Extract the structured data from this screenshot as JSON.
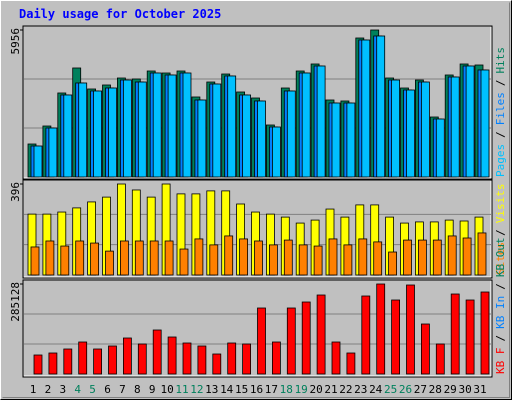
{
  "title": "Daily usage for October 2025",
  "categories": [
    "1",
    "2",
    "3",
    "4",
    "5",
    "6",
    "7",
    "8",
    "9",
    "10",
    "11",
    "12",
    "13",
    "14",
    "15",
    "16",
    "17",
    "18",
    "19",
    "20",
    "21",
    "22",
    "23",
    "24",
    "25",
    "26",
    "27",
    "28",
    "29",
    "30",
    "31"
  ],
  "category_colors": [
    "#000000",
    "#000000",
    "#000000",
    "#00805c",
    "#00805c",
    "#000000",
    "#000000",
    "#000000",
    "#000000",
    "#000000",
    "#00805c",
    "#00805c",
    "#000000",
    "#000000",
    "#000000",
    "#000000",
    "#000000",
    "#00805c",
    "#00805c",
    "#000000",
    "#000000",
    "#000000",
    "#000000",
    "#000000",
    "#00805c",
    "#00805c",
    "#000000",
    "#000000",
    "#000000",
    "#000000",
    "#000000"
  ],
  "legend_separator": "/",
  "chart_data": [
    {
      "type": "bar",
      "ylim": [
        0,
        5956
      ],
      "yticks": [
        5956
      ],
      "series": [
        {
          "name": "Pages",
          "color": "#00c0ff",
          "values": [
            1256,
            1985,
            3323,
            3809,
            3485,
            3606,
            3930,
            3849,
            4214,
            4133,
            4214,
            3120,
            3768,
            4093,
            3323,
            3080,
            2026,
            3485,
            4214,
            4498,
            2998,
            2998,
            5551,
            5713,
            3930,
            3525,
            3849,
            2350,
            4052,
            4498,
            4336
          ]
        },
        {
          "name": "Files",
          "color": "#0080ff",
          "values": [
            1256,
            1985,
            3323,
            3809,
            3485,
            3606,
            3930,
            3849,
            4214,
            4133,
            4214,
            3120,
            3768,
            4093,
            3323,
            3080,
            2026,
            3485,
            4214,
            4498,
            2998,
            2998,
            5551,
            5713,
            3930,
            3525,
            3849,
            2350,
            4052,
            4498,
            4336
          ]
        },
        {
          "name": "Hits",
          "color": "#00805c",
          "values": [
            1337,
            2066,
            3404,
            4417,
            3566,
            3728,
            4011,
            3971,
            4295,
            4214,
            4295,
            3242,
            3849,
            4173,
            3444,
            3201,
            2107,
            3606,
            4295,
            4579,
            3120,
            3080,
            5632,
            5956,
            4011,
            3606,
            3930,
            2431,
            4133,
            4579,
            4538
          ]
        }
      ]
    },
    {
      "type": "bar",
      "ylim": [
        0,
        396
      ],
      "yticks": [
        396
      ],
      "series": [
        {
          "name": "Sites",
          "color": "#ff8000",
          "values": [
            122,
            148,
            126,
            148,
            139,
            104,
            148,
            148,
            148,
            148,
            113,
            157,
            131,
            170,
            157,
            148,
            131,
            152,
            131,
            126,
            157,
            131,
            157,
            144,
            100,
            152,
            152,
            152,
            170,
            161,
            183
          ]
        },
        {
          "name": "Visits",
          "color": "#ffff00",
          "values": [
            265,
            265,
            274,
            292,
            318,
            339,
            396,
            370,
            339,
            396,
            353,
            353,
            366,
            366,
            309,
            274,
            265,
            252,
            226,
            239,
            287,
            252,
            305,
            305,
            252,
            226,
            231,
            231,
            239,
            235,
            252
          ]
        }
      ]
    },
    {
      "type": "bar",
      "ylim": [
        0,
        285128
      ],
      "yticks": [
        285128
      ],
      "series": [
        {
          "name": "KB F",
          "color": "#ff0000",
          "values": [
            60192,
            66528,
            79200,
            101376,
            79200,
            88704,
            114048,
            95040,
            139392,
            117216,
            98208,
            88704,
            63360,
            98208,
            95040,
            209088,
            101376,
            209088,
            228096,
            250272,
            101376,
            66528,
            247104,
            285128,
            234432,
            281952,
            158400,
            95040,
            253440,
            234432,
            259776
          ]
        },
        {
          "name": "KB In",
          "color": "#0080ff"
        },
        {
          "name": "KB Out",
          "color": "#00805c"
        }
      ]
    }
  ]
}
